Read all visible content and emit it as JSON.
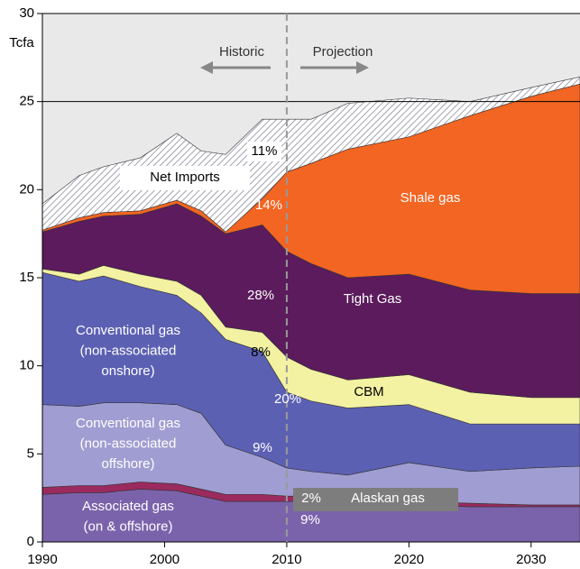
{
  "chart_data": {
    "type": "stacked_area",
    "y_label": "Tcfa",
    "x": [
      1990,
      1993,
      1995,
      1998,
      2001,
      2003,
      2005,
      2008,
      2010,
      2012,
      2015,
      2020,
      2025,
      2030,
      2034
    ],
    "xlim": [
      1990,
      2034
    ],
    "xticks": [
      1990,
      2000,
      2010,
      2020,
      2030
    ],
    "ylim": [
      0,
      30
    ],
    "yticks": [
      0,
      5,
      10,
      15,
      20,
      25,
      30
    ],
    "series": [
      {
        "name": [
          "Associated gas",
          "(on & offshore)"
        ],
        "color": "#7b63ab",
        "values": [
          2.7,
          2.8,
          2.8,
          3.0,
          2.9,
          2.6,
          2.3,
          2.3,
          2.3,
          2.3,
          2.2,
          2.1,
          2.0,
          2.0,
          2.0
        ]
      },
      {
        "name": [
          "Alaskan gas"
        ],
        "color": "#9b2a5e",
        "values": [
          0.4,
          0.4,
          0.4,
          0.4,
          0.4,
          0.4,
          0.4,
          0.4,
          0.3,
          0.3,
          0.4,
          0.2,
          0.2,
          0.1,
          0.1
        ]
      },
      {
        "name": [
          "Conventional gas",
          "(non-associated",
          "offshore)"
        ],
        "color": "#a09dd2",
        "values": [
          4.7,
          4.5,
          4.7,
          4.5,
          4.5,
          4.3,
          2.8,
          2.1,
          1.6,
          1.4,
          1.2,
          2.2,
          1.8,
          2.1,
          2.2
        ]
      },
      {
        "name": [
          "Conventional gas",
          "(non-associated",
          "onshore)"
        ],
        "color": "#5c60b2",
        "values": [
          7.5,
          7.1,
          7.2,
          6.6,
          6.2,
          5.7,
          6.0,
          6.0,
          4.3,
          4.0,
          3.8,
          3.3,
          2.7,
          2.5,
          2.4
        ]
      },
      {
        "name": [
          "CBM"
        ],
        "color": "#f3f1a2",
        "values": [
          0.2,
          0.4,
          0.6,
          0.7,
          0.8,
          1.0,
          0.7,
          1.1,
          2.0,
          1.8,
          1.6,
          1.7,
          1.8,
          1.5,
          1.5
        ]
      },
      {
        "name": [
          "Tight Gas"
        ],
        "color": "#5b1b5c",
        "values": [
          2.1,
          3.0,
          2.8,
          3.4,
          4.4,
          4.5,
          5.3,
          6.1,
          6.0,
          6.0,
          5.8,
          5.7,
          5.8,
          5.9,
          5.9
        ]
      },
      {
        "name": [
          "Shale gas"
        ],
        "color": "#f26522",
        "values": [
          0.1,
          0.2,
          0.2,
          0.2,
          0.2,
          0.3,
          0.1,
          1.5,
          4.5,
          5.7,
          7.3,
          7.8,
          9.9,
          11.2,
          11.9
        ]
      },
      {
        "name": [
          "Net Imports"
        ],
        "color": "hatch",
        "values": [
          1.5,
          2.4,
          2.6,
          3.0,
          3.8,
          3.4,
          4.4,
          4.5,
          3.0,
          2.5,
          2.6,
          2.2,
          0.8,
          0.5,
          0.4
        ]
      }
    ],
    "annotations": [
      "Historic",
      "Projection",
      "11%",
      "14%",
      "28%",
      "8%",
      "20%",
      "9%",
      "2%",
      "9%"
    ]
  }
}
